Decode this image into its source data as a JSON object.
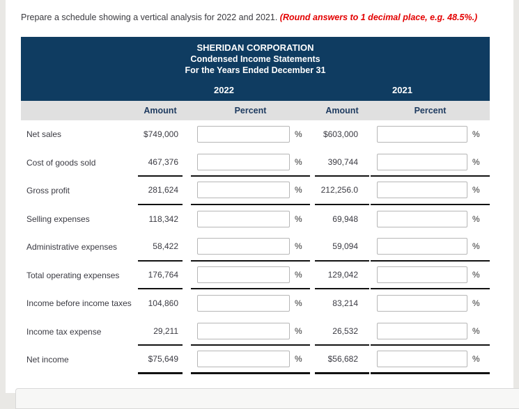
{
  "instruction": {
    "text": "Prepare a schedule showing a vertical analysis for 2022 and 2021.",
    "note": "(Round answers to 1 decimal place, e.g. 48.5%.)"
  },
  "statement": {
    "company": "SHERIDAN CORPORATION",
    "subtitle1": "Condensed Income Statements",
    "subtitle2": "For the Years Ended December 31",
    "years": [
      "2022",
      "2021"
    ],
    "column_headers": [
      "Amount",
      "Percent",
      "Amount",
      "Percent"
    ],
    "percent_symbol": "%",
    "rows": [
      {
        "label": "Net sales",
        "amount_2022": "$749,000",
        "percent_2022": "",
        "amount_2021": "$603,000",
        "percent_2021": "",
        "underline": "none"
      },
      {
        "label": "Cost of goods sold",
        "amount_2022": "467,376",
        "percent_2022": "",
        "amount_2021": "390,744",
        "percent_2021": "",
        "underline": "single"
      },
      {
        "label": "Gross profit",
        "amount_2022": "281,624",
        "percent_2022": "",
        "amount_2021": "212,256.0",
        "percent_2021": "",
        "underline": "single"
      },
      {
        "label": "Selling expenses",
        "amount_2022": "118,342",
        "percent_2022": "",
        "amount_2021": "69,948",
        "percent_2021": "",
        "underline": "none"
      },
      {
        "label": "Administrative expenses",
        "amount_2022": "58,422",
        "percent_2022": "",
        "amount_2021": "59,094",
        "percent_2021": "",
        "underline": "single"
      },
      {
        "label": "Total operating expenses",
        "amount_2022": "176,764",
        "percent_2022": "",
        "amount_2021": "129,042",
        "percent_2021": "",
        "underline": "single"
      },
      {
        "label": "Income before income taxes",
        "amount_2022": "104,860",
        "percent_2022": "",
        "amount_2021": "83,214",
        "percent_2021": "",
        "underline": "none"
      },
      {
        "label": "Income tax expense",
        "amount_2022": "29,211",
        "percent_2022": "",
        "amount_2021": "26,532",
        "percent_2021": "",
        "underline": "single"
      },
      {
        "label": "Net income",
        "amount_2022": "$75,649",
        "percent_2022": "",
        "amount_2021": "$56,682",
        "percent_2021": "",
        "underline": "double"
      }
    ]
  },
  "colors": {
    "banner_navy": "#0f3c61",
    "header_strip_gray": "#e0e0e0",
    "note_red": "#e30000",
    "underline_black": "#111111"
  }
}
